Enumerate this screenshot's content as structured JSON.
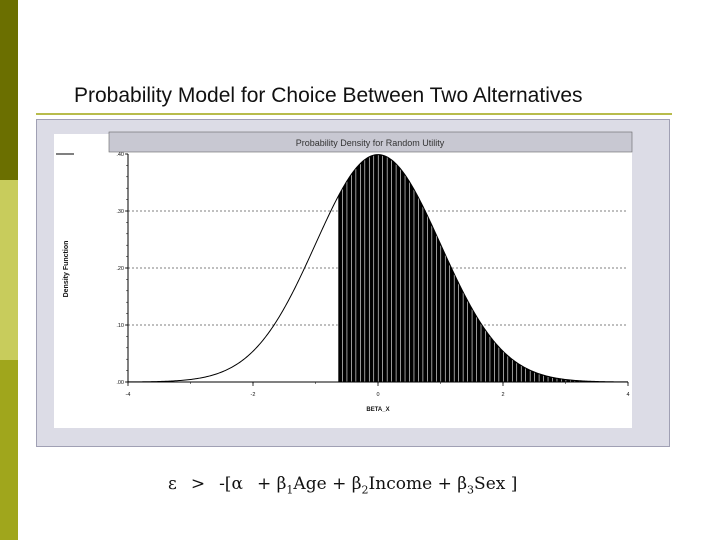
{
  "slide": {
    "title": "Probability Model for Choice Between Two Alternatives",
    "accent_colors": [
      "#6b6f00",
      "#c8cc5c",
      "#a0a61c"
    ]
  },
  "equation": {
    "epsilon": "ε",
    "gt": ">",
    "open": "-[",
    "alpha": "α",
    "plus1": "+",
    "beta1": "β",
    "sub1": "1",
    "term1": "Age",
    "plus2": "+",
    "beta2": "β",
    "sub2": "2",
    "term2": "Income",
    "plus3": "+",
    "beta3": "β",
    "sub3": "3",
    "term3": "Sex",
    "close": "]"
  },
  "chart_data": {
    "type": "area",
    "title": "Probability Density for Random Utility",
    "xlabel": "BETA_X",
    "ylabel": "Density Function",
    "xlim": [
      -4,
      4
    ],
    "ylim": [
      0,
      0.4
    ],
    "x_ticks": [
      "-4",
      "-2",
      "0",
      "2",
      "4"
    ],
    "y_ticks": [
      ".00",
      ".10",
      ".20",
      ".30",
      ".40"
    ],
    "grid": "horizontal dashed at .10, .20, .30",
    "series": [
      {
        "curve": "normal density",
        "mean": 0,
        "sd": 1,
        "shaded_from": -0.64,
        "shaded_to": 4
      }
    ]
  }
}
